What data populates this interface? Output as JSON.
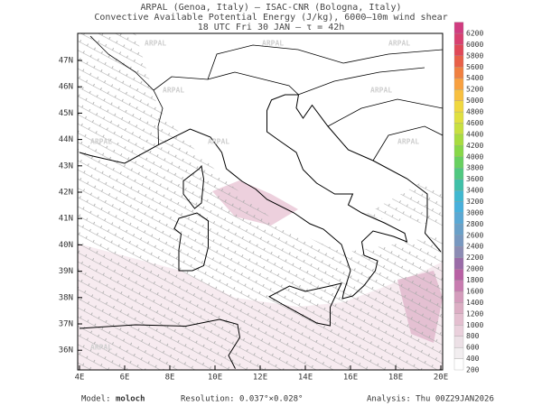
{
  "header": {
    "line1": "ARPAL (Genoa, Italy)  –  ISAC-CNR (Bologna, Italy)",
    "line2": "Convective Available Potential Energy (J/kg), 6000–10m wind shear",
    "line3": "18 UTC Fri 30 JAN  –  τ = 42h"
  },
  "map": {
    "lon_ticks": [
      "4E",
      "6E",
      "8E",
      "10E",
      "12E",
      "14E",
      "16E",
      "18E",
      "20E"
    ],
    "lat_ticks": [
      "47N",
      "46N",
      "45N",
      "44N",
      "43N",
      "42N",
      "41N",
      "40N",
      "39N",
      "38N",
      "37N",
      "36N"
    ],
    "watermark": "ARPAL"
  },
  "colorbar": {
    "levels": [
      200,
      400,
      600,
      800,
      1000,
      1200,
      1400,
      1600,
      1800,
      2000,
      2200,
      2400,
      2600,
      2800,
      3000,
      3200,
      3400,
      3600,
      3800,
      4000,
      4200,
      4400,
      4600,
      4800,
      5000,
      5200,
      5400,
      5600,
      5800,
      6000,
      6200
    ],
    "colors": [
      "#ffffff",
      "#f2eef0",
      "#ece0e6",
      "#ead0dc",
      "#e4bfd0",
      "#dcaec4",
      "#d49cbc",
      "#c87cb0",
      "#b860a4",
      "#9a6ca8",
      "#8c8cb4",
      "#7898c0",
      "#6aa0c8",
      "#5aa8d4",
      "#48b0dc",
      "#40b8d0",
      "#40c0a8",
      "#50c880",
      "#68d060",
      "#88d848",
      "#a8dc40",
      "#c8e040",
      "#e0e040",
      "#f0d840",
      "#f8c040",
      "#f8a040",
      "#f08040",
      "#e86048",
      "#e04858",
      "#d84070",
      "#d03c80"
    ]
  },
  "footer": {
    "model_label": "Model:",
    "model": "moloch",
    "resolution": "Resolution: 0.037°×0.028°",
    "analysis": "Analysis: Thu 00Z29JAN2026"
  }
}
